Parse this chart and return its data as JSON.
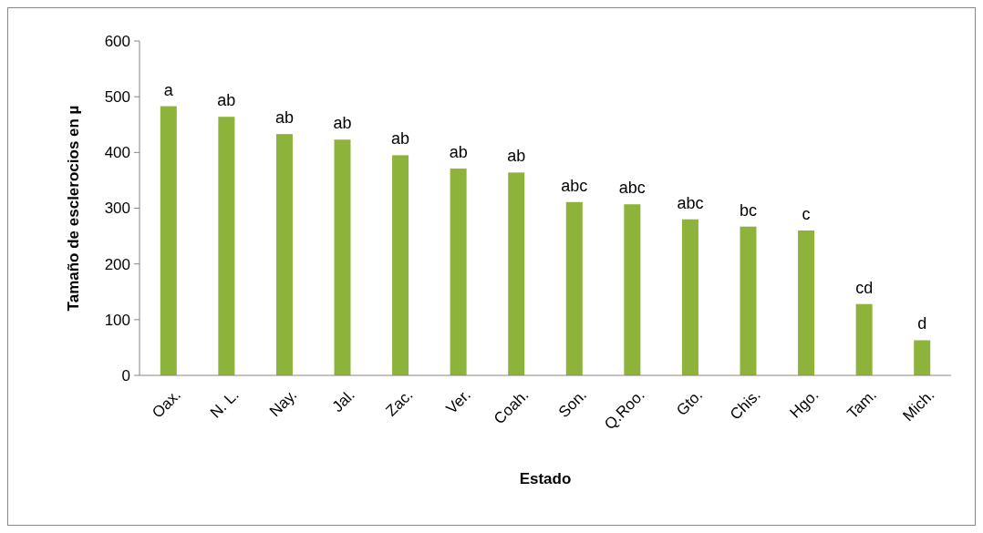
{
  "chart_data": {
    "type": "bar",
    "xlabel": "Estado",
    "ylabel": "Tamaño de esclerocios en µ",
    "categories": [
      "Oax.",
      "N. L.",
      "Nay.",
      "Jal.",
      "Zac.",
      "Ver.",
      "Coah.",
      "Son.",
      "Q.Roo.",
      "Gto.",
      "Chis.",
      "Hgo.",
      "Tam.",
      "Mich."
    ],
    "values": [
      483,
      464,
      433,
      423,
      395,
      371,
      364,
      311,
      307,
      280,
      267,
      260,
      128,
      63
    ],
    "color": "#8db33a",
    "ylim": [
      0,
      600
    ],
    "yticks": [
      0,
      100,
      200,
      300,
      400,
      500,
      600
    ],
    "grid": false,
    "annotations": [
      {
        "text": "a",
        "x": "Oax.",
        "y": 483
      },
      {
        "text": "ab",
        "x": "N. L.",
        "y": 464
      },
      {
        "text": "ab",
        "x": "Nay.",
        "y": 433
      },
      {
        "text": "ab",
        "x": "Jal.",
        "y": 423
      },
      {
        "text": "ab",
        "x": "Zac.",
        "y": 395
      },
      {
        "text": "ab",
        "x": "Ver.",
        "y": 371
      },
      {
        "text": "ab",
        "x": "Coah.",
        "y": 364
      },
      {
        "text": "abc",
        "x": "Son.",
        "y": 311
      },
      {
        "text": "abc",
        "x": "Q.Roo.",
        "y": 307
      },
      {
        "text": "abc",
        "x": "Gto.",
        "y": 280
      },
      {
        "text": "bc",
        "x": "Chis.",
        "y": 267
      },
      {
        "text": "c",
        "x": "Hgo.",
        "y": 260
      },
      {
        "text": "cd",
        "x": "Tam.",
        "y": 128
      },
      {
        "text": "d",
        "x": "Mich.",
        "y": 63
      }
    ]
  }
}
